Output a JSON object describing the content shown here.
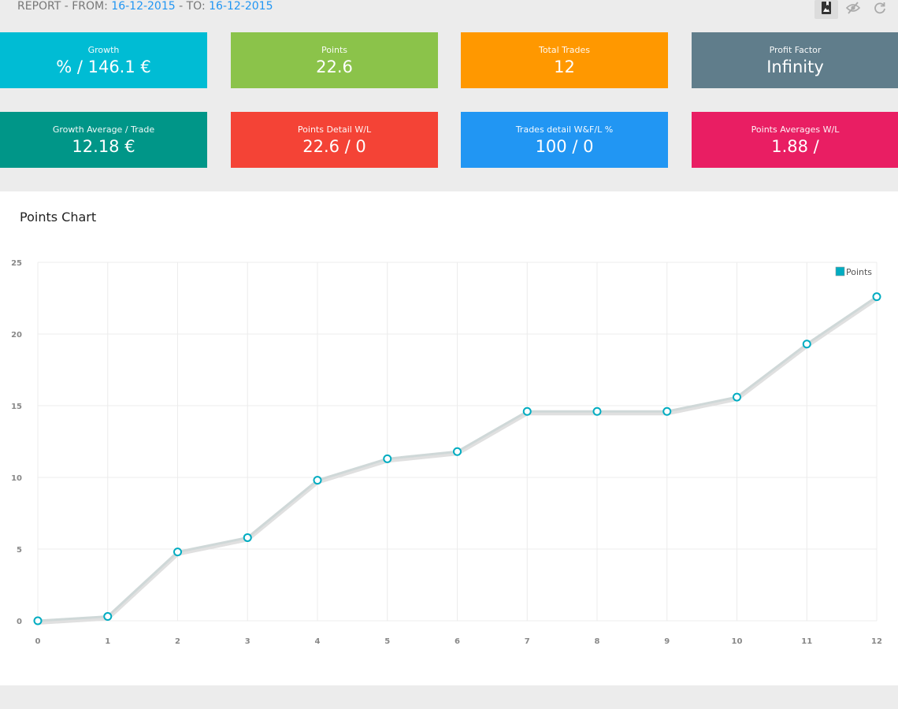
{
  "header": {
    "report_prefix": "REPORT - FROM: ",
    "from_date": "16-12-2015",
    "to_sep": " - TO: ",
    "to_date": "16-12-2015"
  },
  "toolbar": {
    "buttons": [
      {
        "icon": "image-bookmark-icon",
        "active": true
      },
      {
        "icon": "eye-off-icon",
        "active": false
      },
      {
        "icon": "refresh-icon",
        "active": false
      }
    ]
  },
  "tiles": [
    {
      "label": "Growth",
      "value": "% / 146.1 €",
      "color": "#00bcd4"
    },
    {
      "label": "Points",
      "value": "22.6",
      "color": "#8bc34a"
    },
    {
      "label": "Total Trades",
      "value": "12",
      "color": "#ff9800"
    },
    {
      "label": "Profit Factor",
      "value": "Infinity",
      "color": "#607d8b"
    },
    {
      "label": "Growth Average / Trade",
      "value": "12.18 €",
      "color": "#009688"
    },
    {
      "label": "Points Detail W/L",
      "value": "22.6 / 0",
      "color": "#f44336"
    },
    {
      "label": "Trades detail W&F/L %",
      "value": "100 / 0",
      "color": "#2196f3"
    },
    {
      "label": "Points Averages W/L",
      "value": "1.88 /",
      "color": "#e91e63"
    }
  ],
  "panel": {
    "title": "Points Chart"
  },
  "chart_data": {
    "type": "line",
    "title": "Points Chart",
    "x": [
      0,
      1,
      2,
      3,
      4,
      5,
      6,
      7,
      8,
      9,
      10,
      11,
      12
    ],
    "series": [
      {
        "name": "Points",
        "values": [
          0,
          0.3,
          4.8,
          5.8,
          9.8,
          11.3,
          11.8,
          14.6,
          14.6,
          14.6,
          15.6,
          19.3,
          22.6
        ],
        "color": "#00acc1"
      }
    ],
    "xlim": [
      0,
      12
    ],
    "ylim": [
      0,
      25
    ],
    "yticks": [
      0,
      5,
      10,
      15,
      20,
      25
    ],
    "xticks": [
      0,
      1,
      2,
      3,
      4,
      5,
      6,
      7,
      8,
      9,
      10,
      11,
      12
    ],
    "grid": true,
    "legend": "top-right"
  }
}
